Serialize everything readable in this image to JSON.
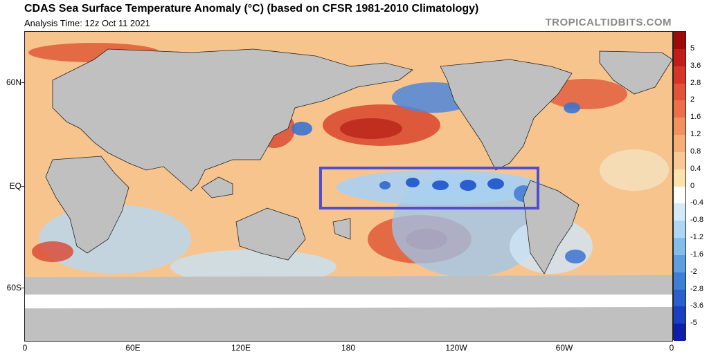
{
  "header": {
    "title": "CDAS Sea Surface Temperature Anomaly (°C) (based on CFSR 1981-2010 Climatology)",
    "analysis_time": "Analysis Time: 12z Oct 11 2021",
    "source": "TROPICALTIDBITS.COM"
  },
  "map": {
    "lat_labels": [
      "60N",
      "EQ",
      "60S"
    ],
    "lon_labels": [
      "0",
      "60E",
      "120E",
      "180",
      "120W",
      "60W",
      "0"
    ],
    "highlight_box_color": "#4f4fd0",
    "land_color": "#c0c0c0"
  },
  "colorbar": {
    "labels": [
      "5",
      "3.6",
      "2.8",
      "2",
      "1.6",
      "1.2",
      "0.8",
      "0.4",
      "0",
      "-0.4",
      "-0.8",
      "-1.2",
      "-1.6",
      "-2",
      "-2.8",
      "-3.6",
      "-5"
    ],
    "colors": [
      "#9e0a0a",
      "#c41b1b",
      "#d83428",
      "#e4523a",
      "#ec6f4a",
      "#f2905f",
      "#f6ad78",
      "#f8c994",
      "#fbe3ad",
      "#ffffff",
      "#d3ebf8",
      "#acd6f1",
      "#84bdea",
      "#5d9fe0",
      "#3c7fd6",
      "#2a5fcf",
      "#1a3fc3",
      "#0d1fab"
    ]
  }
}
